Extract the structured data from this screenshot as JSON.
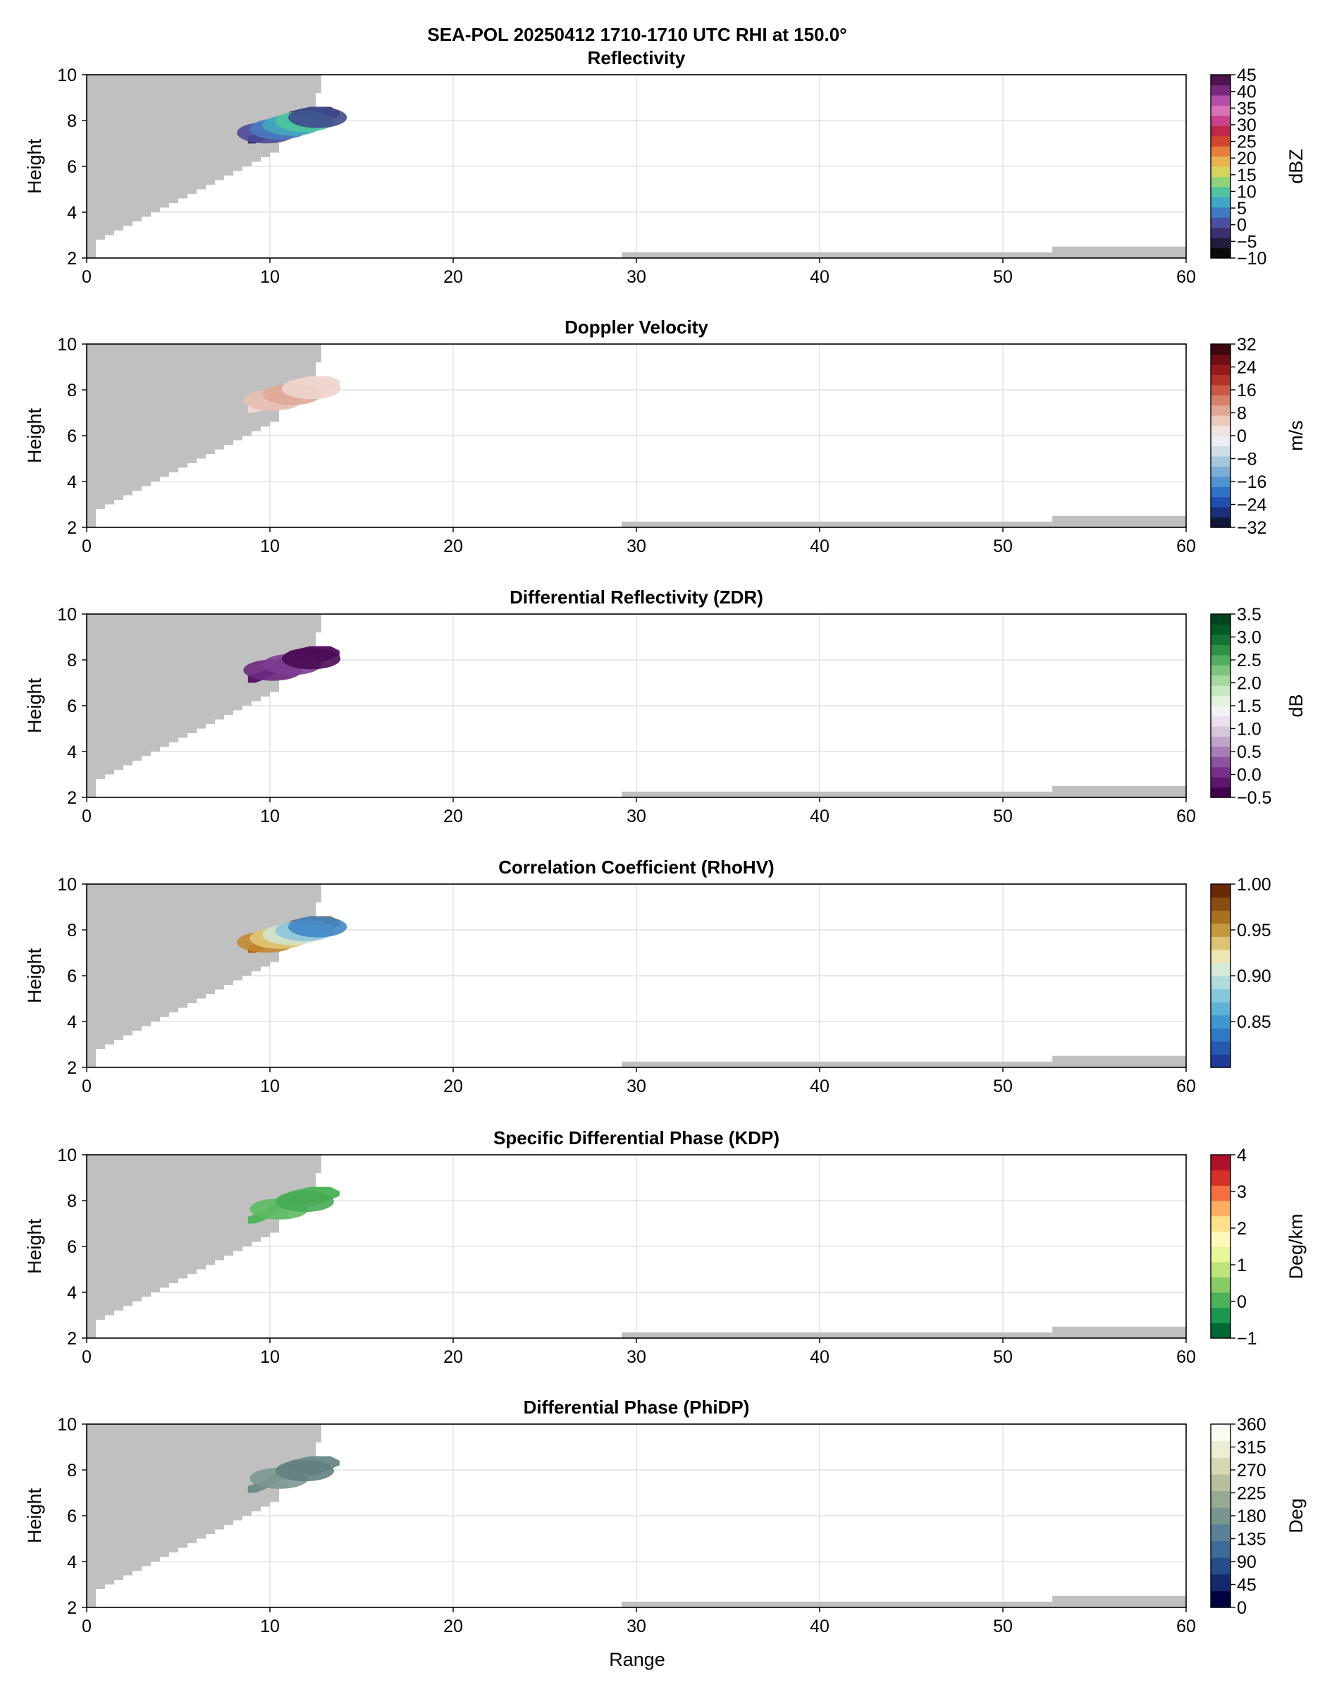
{
  "figure": {
    "suptitle": "SEA-POL 20250412 1710-1710 UTC RHI at 150.0°",
    "xlabel": "Range",
    "ylabel": "Height",
    "x_ticks": [
      "0",
      "10",
      "20",
      "30",
      "40",
      "50",
      "60"
    ],
    "y_ticks": [
      "2",
      "4",
      "6",
      "8",
      "10"
    ]
  },
  "chart_data": [
    {
      "type": "heatmap",
      "title": "Reflectivity",
      "xlabel": "",
      "ylabel": "Height",
      "xlim": [
        0,
        60
      ],
      "ylim": [
        2,
        10
      ],
      "grid": true,
      "colorbar": {
        "label": "dBZ",
        "ticks": [
          "45",
          "40",
          "35",
          "30",
          "25",
          "20",
          "15",
          "10",
          "5",
          "0",
          "−5",
          "−10"
        ],
        "tick_values": [
          45,
          40,
          35,
          30,
          25,
          20,
          15,
          10,
          5,
          0,
          -5,
          -10
        ],
        "range": [
          -10,
          45
        ],
        "colors": [
          "#0a0a0a",
          "#231c3c",
          "#3b2f6f",
          "#4b4fa2",
          "#3f79c1",
          "#3fa6c6",
          "#52c3a1",
          "#8fd27a",
          "#d6d45c",
          "#e8b24f",
          "#e57e3e",
          "#d3452d",
          "#c2264a",
          "#c8418a",
          "#d772b6",
          "#b24ea8",
          "#7a2a7c",
          "#4d1450"
        ]
      },
      "echo": {
        "range_km": [
          8.8,
          13.8
        ],
        "height_km": [
          7.0,
          8.6
        ],
        "colors": [
          "#3d3470",
          "#4b4a98",
          "#4a7bc1",
          "#43a9bd",
          "#4cc79d",
          "#3f4a8c"
        ]
      }
    },
    {
      "type": "heatmap",
      "title": "Doppler Velocity",
      "xlabel": "",
      "ylabel": "Height",
      "xlim": [
        0,
        60
      ],
      "ylim": [
        2,
        10
      ],
      "grid": true,
      "colorbar": {
        "label": "m/s",
        "ticks": [
          "32",
          "24",
          "16",
          "8",
          "0",
          "−8",
          "−16",
          "−24",
          "−32"
        ],
        "tick_values": [
          32,
          24,
          16,
          8,
          0,
          -8,
          -16,
          -24,
          -32
        ],
        "range": [
          -32,
          32
        ],
        "colors": [
          "#11173a",
          "#1a2f7a",
          "#1f4fb0",
          "#2f73c6",
          "#4f94cf",
          "#7aaed6",
          "#a6c6de",
          "#cddde8",
          "#ebeef1",
          "#f1e4df",
          "#ebc9bd",
          "#e2a695",
          "#d7806b",
          "#c85a45",
          "#b33427",
          "#961a1b",
          "#6d0d16",
          "#3f0610"
        ]
      },
      "echo": {
        "range_km": [
          8.8,
          13.8
        ],
        "height_km": [
          7.0,
          8.6
        ],
        "colors": [
          "#f0d9d2",
          "#e7bfb2",
          "#dfa898",
          "#eed4cc"
        ]
      }
    },
    {
      "type": "heatmap",
      "title": "Differential Reflectivity (ZDR)",
      "xlabel": "",
      "ylabel": "Height",
      "xlim": [
        0,
        60
      ],
      "ylim": [
        2,
        10
      ],
      "grid": true,
      "colorbar": {
        "label": "dB",
        "ticks": [
          "3.5",
          "3.0",
          "2.5",
          "2.0",
          "1.5",
          "1.0",
          "0.5",
          "0.0",
          "−0.5"
        ],
        "tick_values": [
          3.5,
          3.0,
          2.5,
          2.0,
          1.5,
          1.0,
          0.5,
          0.0,
          -0.5
        ],
        "range": [
          -0.5,
          3.5
        ],
        "colors": [
          "#40004b",
          "#5e1570",
          "#76308a",
          "#8d52a0",
          "#a77cb7",
          "#c0a2ca",
          "#d8c6de",
          "#ebdff0",
          "#f5f2f5",
          "#e4f2e0",
          "#c7e8c0",
          "#a4d89e",
          "#7dc57d",
          "#53ad5f",
          "#2e8f45",
          "#157333",
          "#005a24",
          "#00441b"
        ]
      },
      "echo": {
        "range_km": [
          8.8,
          13.8
        ],
        "height_km": [
          7.0,
          8.6
        ],
        "colors": [
          "#5a1666",
          "#6e2880",
          "#7d3d92",
          "#4a0b55"
        ]
      }
    },
    {
      "type": "heatmap",
      "title": "Correlation Coefficient (RhoHV)",
      "xlabel": "",
      "ylabel": "Height",
      "xlim": [
        0,
        60
      ],
      "ylim": [
        2,
        10
      ],
      "grid": true,
      "colorbar": {
        "label": "",
        "ticks": [
          "1.00",
          "0.95",
          "0.90",
          "0.85"
        ],
        "tick_values": [
          1.0,
          0.95,
          0.9,
          0.85
        ],
        "range": [
          0.8,
          1.0
        ],
        "colors": [
          "#1f3a98",
          "#2659b0",
          "#2f79c2",
          "#3f97cd",
          "#5eb2d6",
          "#86c8db",
          "#afdbdd",
          "#d6ead9",
          "#eee5b4",
          "#ddc376",
          "#c49a3f",
          "#a8701f",
          "#8a4c10",
          "#6a2a06"
        ]
      },
      "echo": {
        "range_km": [
          8.8,
          13.8
        ],
        "height_km": [
          7.0,
          8.6
        ],
        "colors": [
          "#a45e12",
          "#c38a32",
          "#e1c777",
          "#cfe3d0",
          "#8cc7db",
          "#3f86c6"
        ]
      }
    },
    {
      "type": "heatmap",
      "title": "Specific Differential Phase (KDP)",
      "xlabel": "",
      "ylabel": "Height",
      "xlim": [
        0,
        60
      ],
      "ylim": [
        2,
        10
      ],
      "grid": true,
      "colorbar": {
        "label": "Deg/km",
        "ticks": [
          "4",
          "3",
          "2",
          "1",
          "0",
          "−1"
        ],
        "tick_values": [
          4,
          3,
          2,
          1,
          0,
          -1
        ],
        "range": [
          -1,
          4
        ],
        "colors": [
          "#006837",
          "#1a9850",
          "#4db15a",
          "#86cb66",
          "#bde57b",
          "#e8f59b",
          "#fff8b8",
          "#fee08b",
          "#fdae61",
          "#f46d43",
          "#d73027",
          "#b0112a"
        ]
      },
      "echo": {
        "range_km": [
          8.8,
          13.8
        ],
        "height_km": [
          7.0,
          8.6
        ],
        "colors": [
          "#4fb45c",
          "#5dbb62",
          "#47ab56"
        ]
      }
    },
    {
      "type": "heatmap",
      "title": "Differential Phase (PhiDP)",
      "xlabel": "Range",
      "ylabel": "Height",
      "xlim": [
        0,
        60
      ],
      "ylim": [
        2,
        10
      ],
      "grid": true,
      "colorbar": {
        "label": "Deg",
        "ticks": [
          "360",
          "315",
          "270",
          "225",
          "180",
          "135",
          "90",
          "45",
          "0"
        ],
        "tick_values": [
          360,
          315,
          270,
          225,
          180,
          135,
          90,
          45,
          0
        ],
        "range": [
          0,
          360
        ],
        "colors": [
          "#00053f",
          "#122a6b",
          "#244d8a",
          "#3d6b98",
          "#5a8197",
          "#78958f",
          "#97a992",
          "#b8bf9c",
          "#d6d8b4",
          "#eeeed6",
          "#fbfbf2"
        ]
      },
      "echo": {
        "range_km": [
          8.8,
          13.8
        ],
        "height_km": [
          7.0,
          8.6
        ],
        "colors": [
          "#6f8d8a",
          "#7c9894",
          "#627f80"
        ]
      }
    }
  ],
  "blanked": {
    "color": "#c0c0c0",
    "cone_edge": [
      [
        0.0,
        2.0
      ],
      [
        0.5,
        2.8
      ],
      [
        1.0,
        3.0
      ],
      [
        1.5,
        3.2
      ],
      [
        2.0,
        3.4
      ],
      [
        2.5,
        3.6
      ],
      [
        3.0,
        3.8
      ],
      [
        3.5,
        4.0
      ],
      [
        4.0,
        4.2
      ],
      [
        4.5,
        4.4
      ],
      [
        5.0,
        4.6
      ],
      [
        5.5,
        4.8
      ],
      [
        6.0,
        5.0
      ],
      [
        6.5,
        5.2
      ],
      [
        7.0,
        5.4
      ],
      [
        7.5,
        5.6
      ],
      [
        8.0,
        5.8
      ],
      [
        8.5,
        6.0
      ],
      [
        9.0,
        6.2
      ],
      [
        9.5,
        6.4
      ],
      [
        10.0,
        6.6
      ],
      [
        10.5,
        7.2
      ],
      [
        11.0,
        7.6
      ],
      [
        11.5,
        8.0
      ],
      [
        12.0,
        8.4
      ],
      [
        12.5,
        9.2
      ],
      [
        12.8,
        9.8
      ],
      [
        12.8,
        10.0
      ]
    ],
    "ground": [
      [
        29.2,
        52.7,
        2.25
      ],
      [
        52.7,
        60.0,
        2.5
      ]
    ]
  }
}
